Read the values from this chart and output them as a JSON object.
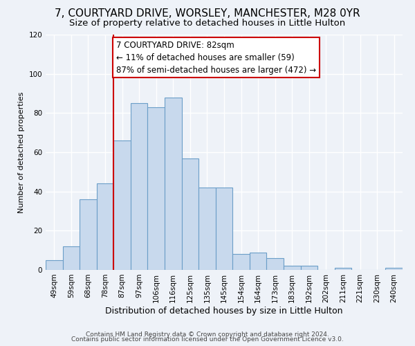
{
  "title": "7, COURTYARD DRIVE, WORSLEY, MANCHESTER, M28 0YR",
  "subtitle": "Size of property relative to detached houses in Little Hulton",
  "xlabel": "Distribution of detached houses by size in Little Hulton",
  "ylabel": "Number of detached properties",
  "bar_labels": [
    "49sqm",
    "59sqm",
    "68sqm",
    "78sqm",
    "87sqm",
    "97sqm",
    "106sqm",
    "116sqm",
    "125sqm",
    "135sqm",
    "145sqm",
    "154sqm",
    "164sqm",
    "173sqm",
    "183sqm",
    "192sqm",
    "202sqm",
    "211sqm",
    "221sqm",
    "230sqm",
    "240sqm"
  ],
  "bar_values": [
    5,
    12,
    36,
    44,
    66,
    85,
    83,
    88,
    57,
    42,
    42,
    8,
    9,
    6,
    2,
    2,
    0,
    1,
    0,
    0,
    1
  ],
  "bar_color": "#c8d9ed",
  "bar_edge_color": "#6b9ec8",
  "vline_color": "#cc0000",
  "annotation_box_text": "7 COURTYARD DRIVE: 82sqm\n← 11% of detached houses are smaller (59)\n87% of semi-detached houses are larger (472) →",
  "annotation_box_color": "#ffffff",
  "annotation_box_edge_color": "#cc0000",
  "ylim": [
    0,
    120
  ],
  "yticks": [
    0,
    20,
    40,
    60,
    80,
    100,
    120
  ],
  "footer1": "Contains HM Land Registry data © Crown copyright and database right 2024.",
  "footer2": "Contains public sector information licensed under the Open Government Licence v3.0.",
  "background_color": "#eef2f8",
  "grid_color": "#ffffff",
  "title_fontsize": 11,
  "subtitle_fontsize": 9.5,
  "xlabel_fontsize": 9,
  "ylabel_fontsize": 8,
  "tick_fontsize": 7.5,
  "annotation_fontsize": 8.5,
  "footer_fontsize": 6.5
}
